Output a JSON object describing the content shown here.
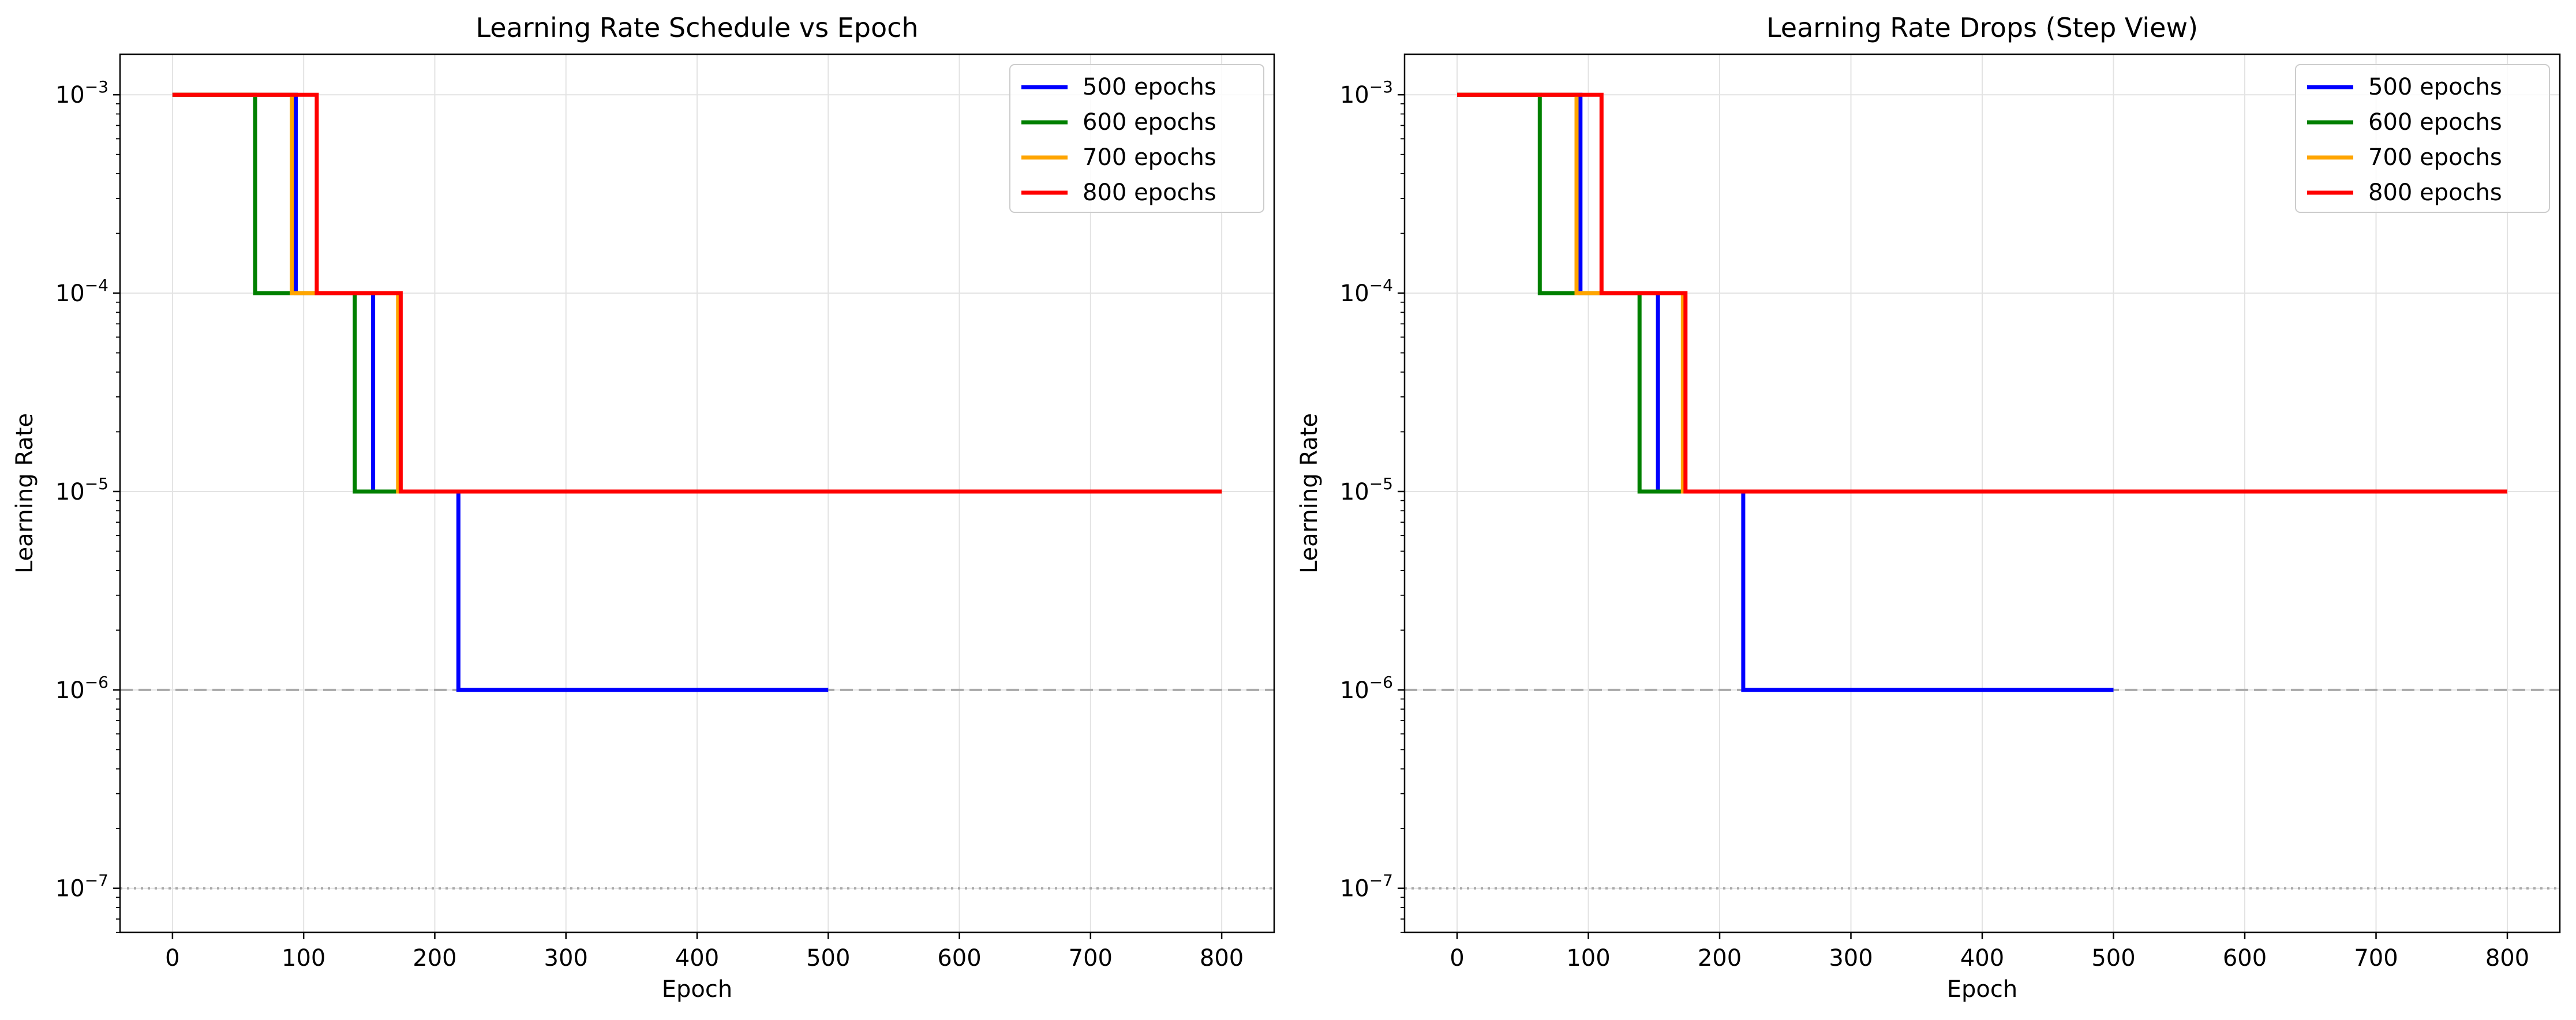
{
  "chart_data": [
    {
      "type": "line",
      "title": "Learning Rate Schedule vs Epoch",
      "xlabel": "Epoch",
      "ylabel": "Learning Rate",
      "yscale": "log",
      "xlim": [
        -40,
        840
      ],
      "ylim": [
        6e-08,
        0.0016
      ],
      "xticks": [
        0,
        100,
        200,
        300,
        400,
        500,
        600,
        700,
        800
      ],
      "yticks": [
        {
          "value": 1e-07,
          "base": "10",
          "exp": "−7"
        },
        {
          "value": 1e-06,
          "base": "10",
          "exp": "−6"
        },
        {
          "value": 1e-05,
          "base": "10",
          "exp": "−5"
        },
        {
          "value": 0.0001,
          "base": "10",
          "exp": "−4"
        },
        {
          "value": 0.001,
          "base": "10",
          "exp": "−3"
        }
      ],
      "grid": true,
      "legend_position": "top-right",
      "reference_lines": [
        {
          "y": 1e-06,
          "style": "dashed",
          "color": "#aaaaaa"
        },
        {
          "y": 1e-07,
          "style": "dotted",
          "color": "#aaaaaa"
        }
      ],
      "series": [
        {
          "name": "500 epochs",
          "color": "#0000ff",
          "x": [
            0,
            94,
            94,
            153,
            153,
            218,
            218,
            500
          ],
          "y": [
            0.001,
            0.001,
            0.0001,
            0.0001,
            1e-05,
            1e-05,
            1e-06,
            1e-06
          ]
        },
        {
          "name": "600 epochs",
          "color": "#008000",
          "x": [
            0,
            63,
            63,
            139,
            139,
            800
          ],
          "y": [
            0.001,
            0.001,
            0.0001,
            0.0001,
            1e-05,
            1e-05
          ]
        },
        {
          "name": "700 epochs",
          "color": "#ffa500",
          "x": [
            0,
            91,
            91,
            172,
            172,
            800
          ],
          "y": [
            0.001,
            0.001,
            0.0001,
            0.0001,
            1e-05,
            1e-05
          ]
        },
        {
          "name": "800 epochs",
          "color": "#ff0000",
          "x": [
            0,
            110,
            110,
            174,
            174,
            800
          ],
          "y": [
            0.001,
            0.001,
            0.0001,
            0.0001,
            1e-05,
            1e-05
          ]
        }
      ]
    },
    {
      "type": "line",
      "title": "Learning Rate Drops (Step View)",
      "xlabel": "Epoch",
      "ylabel": "Learning Rate",
      "yscale": "log",
      "xlim": [
        -40,
        840
      ],
      "ylim": [
        6e-08,
        0.0016
      ],
      "xticks": [
        0,
        100,
        200,
        300,
        400,
        500,
        600,
        700,
        800
      ],
      "yticks": [
        {
          "value": 1e-07,
          "base": "10",
          "exp": "−7"
        },
        {
          "value": 1e-06,
          "base": "10",
          "exp": "−6"
        },
        {
          "value": 1e-05,
          "base": "10",
          "exp": "−5"
        },
        {
          "value": 0.0001,
          "base": "10",
          "exp": "−4"
        },
        {
          "value": 0.001,
          "base": "10",
          "exp": "−3"
        }
      ],
      "grid": true,
      "legend_position": "top-right",
      "reference_lines": [
        {
          "y": 1e-06,
          "style": "dashed",
          "color": "#aaaaaa"
        },
        {
          "y": 1e-07,
          "style": "dotted",
          "color": "#aaaaaa"
        }
      ],
      "series": [
        {
          "name": "500 epochs",
          "color": "#0000ff",
          "x": [
            0,
            94,
            94,
            153,
            153,
            218,
            218,
            500
          ],
          "y": [
            0.001,
            0.001,
            0.0001,
            0.0001,
            1e-05,
            1e-05,
            1e-06,
            1e-06
          ]
        },
        {
          "name": "600 epochs",
          "color": "#008000",
          "x": [
            0,
            63,
            63,
            139,
            139,
            800
          ],
          "y": [
            0.001,
            0.001,
            0.0001,
            0.0001,
            1e-05,
            1e-05
          ]
        },
        {
          "name": "700 epochs",
          "color": "#ffa500",
          "x": [
            0,
            91,
            91,
            172,
            172,
            800
          ],
          "y": [
            0.001,
            0.001,
            0.0001,
            0.0001,
            1e-05,
            1e-05
          ]
        },
        {
          "name": "800 epochs",
          "color": "#ff0000",
          "x": [
            0,
            110,
            110,
            174,
            174,
            800
          ],
          "y": [
            0.001,
            0.001,
            0.0001,
            0.0001,
            1e-05,
            1e-05
          ]
        }
      ]
    }
  ]
}
